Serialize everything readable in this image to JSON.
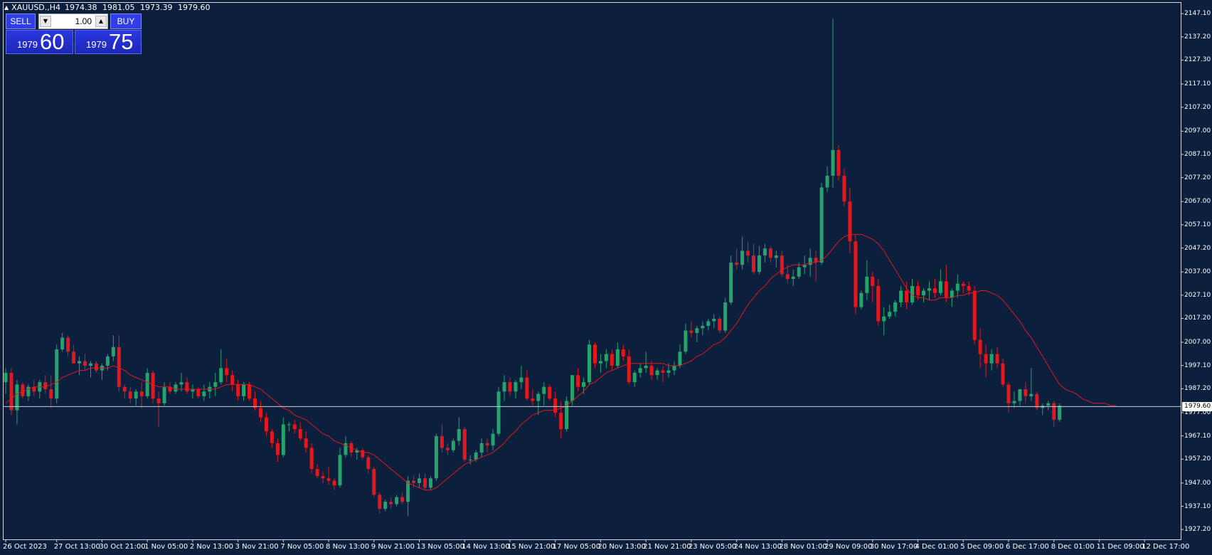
{
  "header": {
    "symbol": "XAUUSD.,H4",
    "open": "1974.38",
    "high": "1981.05",
    "low": "1973.39",
    "close": "1979.60"
  },
  "trade_panel": {
    "sell_label": "SELL",
    "buy_label": "BUY",
    "lot_value": "1.00",
    "sell_price_prefix": "1979",
    "sell_price_pips": "60",
    "buy_price_prefix": "1979",
    "buy_price_pips": "75"
  },
  "colors": {
    "background": "#0c1f3d",
    "bull": "#26a36a",
    "bear": "#e2181e",
    "moving_average": "#e2181e",
    "price_line": "#c8d2dc",
    "buttons": "#2f3ee6"
  },
  "chart_data": {
    "type": "candlestick",
    "timeframe": "H4",
    "current_price": 1979.6,
    "current_price_label": "1979.60",
    "ylim": [
      1923.0,
      2152.0
    ],
    "y_ticks": [
      2147.1,
      2137.2,
      2127.3,
      2117.1,
      2107.2,
      2097.0,
      2087.1,
      2077.2,
      2067.0,
      2057.1,
      2047.2,
      2037.0,
      2027.1,
      2017.2,
      2007.0,
      1997.1,
      1987.2,
      1977.0,
      1967.1,
      1957.2,
      1947.0,
      1937.1,
      1927.2
    ],
    "y_tick_labels": [
      "2147.10",
      "2137.20",
      "2127.30",
      "2117.10",
      "2107.20",
      "2097.00",
      "2087.10",
      "2077.20",
      "2067.00",
      "2057.10",
      "2047.20",
      "2037.00",
      "2027.10",
      "2017.20",
      "2007.00",
      "1997.10",
      "1987.20",
      "1977.00",
      "1967.10",
      "1957.20",
      "1947.00",
      "1937.10",
      "1927.20"
    ],
    "time_labels": [
      {
        "label": "26 Oct 2023",
        "bar": 0
      },
      {
        "label": "27 Oct 13:00",
        "bar": 9
      },
      {
        "label": "30 Oct 21:00",
        "bar": 17
      },
      {
        "label": "1 Nov 05:00",
        "bar": 25
      },
      {
        "label": "2 Nov 13:00",
        "bar": 33
      },
      {
        "label": "3 Nov 21:00",
        "bar": 41
      },
      {
        "label": "7 Nov 05:00",
        "bar": 49
      },
      {
        "label": "8 Nov 13:00",
        "bar": 57
      },
      {
        "label": "9 Nov 21:00",
        "bar": 65
      },
      {
        "label": "13 Nov 05:00",
        "bar": 73
      },
      {
        "label": "14 Nov 13:00",
        "bar": 81
      },
      {
        "label": "15 Nov 21:00",
        "bar": 89
      },
      {
        "label": "17 Nov 05:00",
        "bar": 97
      },
      {
        "label": "20 Nov 13:00",
        "bar": 105
      },
      {
        "label": "21 Nov 21:00",
        "bar": 113
      },
      {
        "label": "23 Nov 05:00",
        "bar": 121
      },
      {
        "label": "24 Nov 13:00",
        "bar": 129
      },
      {
        "label": "28 Nov 01:00",
        "bar": 137
      },
      {
        "label": "29 Nov 09:00",
        "bar": 145
      },
      {
        "label": "30 Nov 17:00",
        "bar": 153
      },
      {
        "label": "4 Dec 01:00",
        "bar": 161
      },
      {
        "label": "5 Dec 09:00",
        "bar": 169
      },
      {
        "label": "6 Dec 17:00",
        "bar": 177
      },
      {
        "label": "8 Dec 01:00",
        "bar": 185
      },
      {
        "label": "11 Dec 09:00",
        "bar": 193
      },
      {
        "label": "12 Dec 17:00",
        "bar": 201
      }
    ],
    "ohlc": [
      [
        1990,
        1996,
        1985,
        1994
      ],
      [
        1994,
        1996,
        1976,
        1978
      ],
      [
        1978,
        1991,
        1972,
        1989
      ],
      [
        1989,
        1990,
        1983,
        1984
      ],
      [
        1984,
        1989,
        1982,
        1988
      ],
      [
        1988,
        1991,
        1984,
        1986
      ],
      [
        1986,
        1991,
        1983,
        1990
      ],
      [
        1990,
        1993,
        1985,
        1987
      ],
      [
        1987,
        1993,
        1979,
        1983
      ],
      [
        1983,
        2006,
        1981,
        2004
      ],
      [
        2004,
        2011,
        2003,
        2009
      ],
      [
        2009,
        2010,
        2001,
        2003
      ],
      [
        2003,
        2006,
        1998,
        1998
      ],
      [
        1998,
        2001,
        1993,
        1999
      ],
      [
        1999,
        2002,
        1995,
        1997
      ],
      [
        1997,
        1999,
        1992,
        1998
      ],
      [
        1998,
        1999,
        1994,
        1995
      ],
      [
        1995,
        1998,
        1991,
        1997
      ],
      [
        1997,
        2002,
        1995,
        2001
      ],
      [
        2001,
        2010,
        1999,
        2005
      ],
      [
        2005,
        2010,
        1986,
        1988
      ],
      [
        1988,
        1989,
        1983,
        1986
      ],
      [
        1986,
        1988,
        1981,
        1983
      ],
      [
        1983,
        1987,
        1980,
        1986
      ],
      [
        1986,
        1990,
        1979,
        1984
      ],
      [
        1984,
        1996,
        1983,
        1994
      ],
      [
        1994,
        1995,
        1981,
        1983
      ],
      [
        1983,
        1986,
        1971,
        1981
      ],
      [
        1981,
        1990,
        1980,
        1988
      ],
      [
        1988,
        1990,
        1985,
        1986
      ],
      [
        1986,
        1990,
        1985,
        1989
      ],
      [
        1989,
        1994,
        1986,
        1990
      ],
      [
        1990,
        1992,
        1985,
        1986
      ],
      [
        1986,
        1989,
        1983,
        1987
      ],
      [
        1987,
        1988,
        1983,
        1984
      ],
      [
        1984,
        1989,
        1982,
        1986
      ],
      [
        1986,
        1990,
        1983,
        1988
      ],
      [
        1988,
        1994,
        1984,
        1990
      ],
      [
        1990,
        2004,
        1989,
        1996
      ],
      [
        1996,
        2000,
        1990,
        1993
      ],
      [
        1993,
        1995,
        1986,
        1989
      ],
      [
        1989,
        1991,
        1982,
        1984
      ],
      [
        1984,
        1990,
        1982,
        1989
      ],
      [
        1989,
        1990,
        1982,
        1983
      ],
      [
        1983,
        1986,
        1978,
        1979
      ],
      [
        1979,
        1982,
        1973,
        1975
      ],
      [
        1975,
        1977,
        1967,
        1969
      ],
      [
        1969,
        1970,
        1962,
        1964
      ],
      [
        1964,
        1966,
        1956,
        1959
      ],
      [
        1959,
        1975,
        1958,
        1972
      ],
      [
        1972,
        1973,
        1969,
        1972
      ],
      [
        1972,
        1974,
        1968,
        1970
      ],
      [
        1970,
        1973,
        1965,
        1966
      ],
      [
        1966,
        1969,
        1960,
        1962
      ],
      [
        1962,
        1964,
        1951,
        1953
      ],
      [
        1953,
        1955,
        1949,
        1950
      ],
      [
        1950,
        1952,
        1947,
        1949
      ],
      [
        1949,
        1954,
        1946,
        1948
      ],
      [
        1948,
        1949,
        1944,
        1946
      ],
      [
        1946,
        1962,
        1945,
        1959
      ],
      [
        1959,
        1967,
        1958,
        1964
      ],
      [
        1964,
        1965,
        1958,
        1960
      ],
      [
        1960,
        1962,
        1957,
        1961
      ],
      [
        1961,
        1962,
        1957,
        1958
      ],
      [
        1958,
        1959,
        1951,
        1953
      ],
      [
        1953,
        1954,
        1941,
        1942
      ],
      [
        1942,
        1943,
        1934,
        1936
      ],
      [
        1936,
        1940,
        1935,
        1939
      ],
      [
        1939,
        1941,
        1936,
        1938
      ],
      [
        1938,
        1942,
        1937,
        1941
      ],
      [
        1941,
        1943,
        1938,
        1939
      ],
      [
        1939,
        1950,
        1933,
        1948
      ],
      [
        1948,
        1950,
        1945,
        1947
      ],
      [
        1947,
        1951,
        1945,
        1949
      ],
      [
        1949,
        1951,
        1944,
        1945
      ],
      [
        1945,
        1950,
        1944,
        1949
      ],
      [
        1949,
        1968,
        1948,
        1967
      ],
      [
        1967,
        1972,
        1960,
        1962
      ],
      [
        1962,
        1964,
        1959,
        1961
      ],
      [
        1961,
        1966,
        1960,
        1965
      ],
      [
        1965,
        1975,
        1963,
        1970
      ],
      [
        1970,
        1971,
        1956,
        1957
      ],
      [
        1957,
        1959,
        1955,
        1957
      ],
      [
        1957,
        1961,
        1956,
        1960
      ],
      [
        1960,
        1966,
        1958,
        1964
      ],
      [
        1964,
        1966,
        1960,
        1963
      ],
      [
        1963,
        1970,
        1961,
        1968
      ],
      [
        1968,
        1988,
        1967,
        1986
      ],
      [
        1986,
        1993,
        1982,
        1990
      ],
      [
        1990,
        1992,
        1984,
        1986
      ],
      [
        1986,
        1991,
        1983,
        1990
      ],
      [
        1990,
        1997,
        1987,
        1992
      ],
      [
        1992,
        1995,
        1982,
        1983
      ],
      [
        1983,
        1987,
        1980,
        1982
      ],
      [
        1982,
        1986,
        1976,
        1985
      ],
      [
        1985,
        1990,
        1980,
        1988
      ],
      [
        1988,
        1989,
        1982,
        1983
      ],
      [
        1983,
        1986,
        1975,
        1977
      ],
      [
        1977,
        1982,
        1966,
        1970
      ],
      [
        1970,
        1984,
        1969,
        1982
      ],
      [
        1982,
        1993,
        1980,
        1993
      ],
      [
        1993,
        1996,
        1986,
        1988
      ],
      [
        1988,
        1992,
        1985,
        1990
      ],
      [
        1990,
        2008,
        1989,
        2006
      ],
      [
        2006,
        2007,
        1996,
        1998
      ],
      [
        1998,
        2002,
        1994,
        1999
      ],
      [
        1999,
        2004,
        1996,
        2002
      ],
      [
        2002,
        2004,
        1995,
        1997
      ],
      [
        1997,
        2007,
        1996,
        2004
      ],
      [
        2004,
        2006,
        1999,
        2001
      ],
      [
        2001,
        2004,
        1989,
        1990
      ],
      [
        1990,
        1995,
        1988,
        1994
      ],
      [
        1994,
        1998,
        1992,
        1996
      ],
      [
        1996,
        2003,
        1994,
        1997
      ],
      [
        1997,
        1999,
        1991,
        1993
      ],
      [
        1993,
        1996,
        1991,
        1995
      ],
      [
        1995,
        1997,
        1990,
        1994
      ],
      [
        1994,
        1998,
        1992,
        1995
      ],
      [
        1995,
        1999,
        1993,
        1997
      ],
      [
        1997,
        2006,
        1996,
        2003
      ],
      [
        2003,
        2015,
        2002,
        2012
      ],
      [
        2012,
        2016,
        2009,
        2011
      ],
      [
        2011,
        2014,
        2007,
        2013
      ],
      [
        2013,
        2016,
        2010,
        2014
      ],
      [
        2014,
        2017,
        2012,
        2016
      ],
      [
        2016,
        2019,
        2013,
        2017
      ],
      [
        2017,
        2018,
        2011,
        2012
      ],
      [
        2012,
        2026,
        2011,
        2024
      ],
      [
        2024,
        2044,
        2023,
        2041
      ],
      [
        2041,
        2047,
        2038,
        2040
      ],
      [
        2040,
        2052,
        2038,
        2046
      ],
      [
        2046,
        2050,
        2041,
        2044
      ],
      [
        2044,
        2049,
        2036,
        2037
      ],
      [
        2037,
        2048,
        2036,
        2044
      ],
      [
        2044,
        2049,
        2041,
        2047
      ],
      [
        2047,
        2048,
        2041,
        2043
      ],
      [
        2043,
        2046,
        2039,
        2044
      ],
      [
        2044,
        2046,
        2035,
        2036
      ],
      [
        2036,
        2040,
        2032,
        2034
      ],
      [
        2034,
        2038,
        2031,
        2035
      ],
      [
        2035,
        2041,
        2034,
        2039
      ],
      [
        2039,
        2044,
        2036,
        2040
      ],
      [
        2040,
        2047,
        2035,
        2043
      ],
      [
        2043,
        2046,
        2033,
        2041
      ],
      [
        2041,
        2075,
        2040,
        2073
      ],
      [
        2073,
        2082,
        2071,
        2078
      ],
      [
        2078,
        2145,
        2073,
        2089
      ],
      [
        2089,
        2091,
        2076,
        2078
      ],
      [
        2078,
        2081,
        2065,
        2067
      ],
      [
        2067,
        2073,
        2045,
        2050
      ],
      [
        2050,
        2053,
        2019,
        2022
      ],
      [
        2022,
        2029,
        2021,
        2028
      ],
      [
        2028,
        2042,
        2025,
        2035
      ],
      [
        2035,
        2037,
        2024,
        2031
      ],
      [
        2031,
        2034,
        2014,
        2016
      ],
      [
        2016,
        2022,
        2010,
        2018
      ],
      [
        2018,
        2023,
        2017,
        2020
      ],
      [
        2020,
        2025,
        2018,
        2024
      ],
      [
        2024,
        2031,
        2022,
        2029
      ],
      [
        2029,
        2033,
        2021,
        2024
      ],
      [
        2024,
        2034,
        2023,
        2031
      ],
      [
        2031,
        2033,
        2025,
        2027
      ],
      [
        2027,
        2030,
        2024,
        2029
      ],
      [
        2029,
        2033,
        2025,
        2030
      ],
      [
        2030,
        2034,
        2026,
        2028
      ],
      [
        2028,
        2038,
        2027,
        2033
      ],
      [
        2033,
        2040,
        2024,
        2026
      ],
      [
        2026,
        2030,
        2022,
        2029
      ],
      [
        2029,
        2036,
        2026,
        2032
      ],
      [
        2032,
        2033,
        2028,
        2031
      ],
      [
        2031,
        2033,
        2027,
        2029
      ],
      [
        2029,
        2031,
        2006,
        2008
      ],
      [
        2008,
        2013,
        1996,
        2002
      ],
      [
        2002,
        2006,
        1992,
        1998
      ],
      [
        1998,
        2004,
        1995,
        2002
      ],
      [
        2002,
        2005,
        1996,
        1998
      ],
      [
        1998,
        2000,
        1988,
        1989
      ],
      [
        1989,
        1990,
        1977,
        1981
      ],
      [
        1981,
        1986,
        1979,
        1982
      ],
      [
        1982,
        1987,
        1980,
        1987
      ],
      [
        1987,
        1990,
        1981,
        1984
      ],
      [
        1984,
        1996,
        1982,
        1985
      ],
      [
        1985,
        1986,
        1978,
        1979
      ],
      [
        1979,
        1981,
        1976,
        1980
      ],
      [
        1980,
        1982,
        1978,
        1981
      ],
      [
        1981,
        1982,
        1971,
        1974
      ],
      [
        1974,
        1981,
        1973,
        1980
      ]
    ],
    "moving_average": [
      1981,
      1983,
      1985,
      1986,
      1987,
      1988,
      1988,
      1988,
      1989,
      1990,
      1992,
      1993,
      1994,
      1995,
      1995,
      1996,
      1996,
      1996,
      1996,
      1997,
      1996,
      1995,
      1993,
      1992,
      1991,
      1990,
      1989,
      1988,
      1988,
      1988,
      1987,
      1987,
      1987,
      1987,
      1987,
      1987,
      1987,
      1987,
      1988,
      1989,
      1989,
      1989,
      1989,
      1989,
      1988,
      1987,
      1985,
      1983,
      1981,
      1979,
      1978,
      1976,
      1975,
      1974,
      1972,
      1970,
      1968,
      1967,
      1965,
      1964,
      1963,
      1962,
      1961,
      1960,
      1960,
      1959,
      1957,
      1955,
      1953,
      1951,
      1949,
      1947,
      1946,
      1945,
      1944,
      1944,
      1945,
      1947,
      1949,
      1951,
      1953,
      1955,
      1956,
      1957,
      1958,
      1959,
      1960,
      1962,
      1964,
      1967,
      1969,
      1972,
      1974,
      1976,
      1977,
      1978,
      1978,
      1978,
      1979,
      1980,
      1982,
      1984,
      1986,
      1989,
      1990,
      1992,
      1994,
      1995,
      1996,
      1997,
      1998,
      1998,
      1998,
      1998,
      1998,
      1998,
      1998,
      1997,
      1997,
      1997,
      1998,
      1999,
      2001,
      2002,
      2004,
      2006,
      2007,
      2009,
      2012,
      2015,
      2019,
      2023,
      2026,
      2029,
      2031,
      2034,
      2036,
      2038,
      2039,
      2040,
      2040,
      2040,
      2041,
      2041,
      2042,
      2044,
      2047,
      2050,
      2052,
      2053,
      2053,
      2053,
      2052,
      2051,
      2049,
      2046,
      2042,
      2038,
      2034,
      2030,
      2027,
      2026,
      2026,
      2025,
      2025,
      2026,
      2026,
      2026,
      2027,
      2027,
      2028,
      2028,
      2029,
      2029,
      2028,
      2027,
      2025,
      2022,
      2019,
      2016,
      2012,
      2009,
      2005,
      2001,
      1997,
      1993,
      1989,
      1987,
      1986,
      1985,
      1983,
      1982,
      1981,
      1981,
      1981,
      1980,
      1980
    ]
  }
}
